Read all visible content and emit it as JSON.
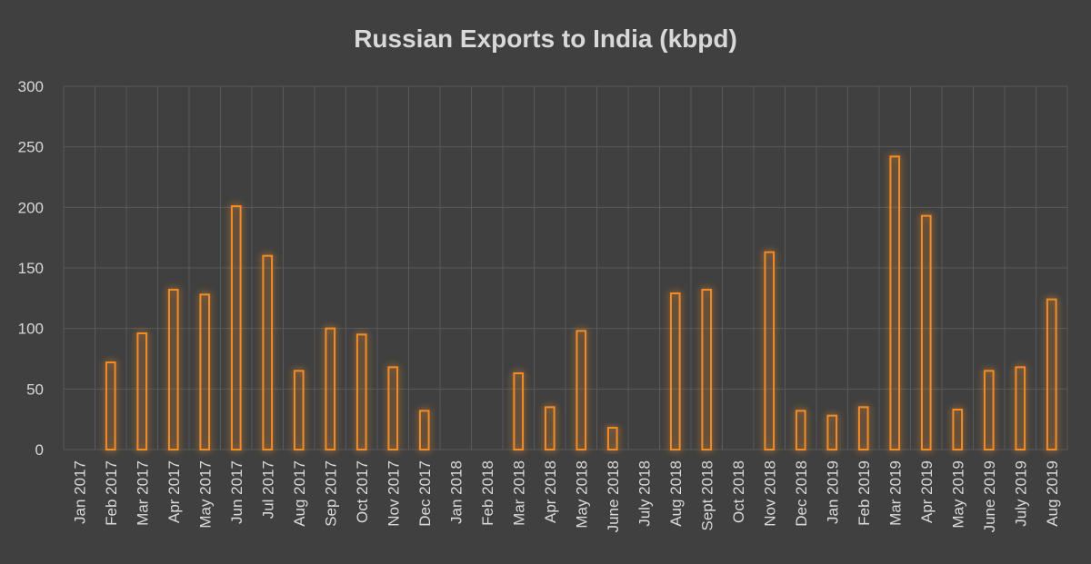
{
  "chart_data": {
    "type": "bar",
    "title": "Russian Exports to India (kbpd)",
    "xlabel": "",
    "ylabel": "",
    "ylim": [
      0,
      300
    ],
    "yticks": [
      0,
      50,
      100,
      150,
      200,
      250,
      300
    ],
    "grid": true,
    "legend": "none",
    "bar_color": "#f28c28",
    "categories": [
      "Jan 2017",
      "Feb 2017",
      "Mar 2017",
      "Apr 2017",
      "May 2017",
      "Jun 2017",
      "Jul 2017",
      "Aug 2017",
      "Sep 2017",
      "Oct 2017",
      "Nov 2017",
      "Dec 2017",
      "Jan 2018",
      "Feb 2018",
      "Mar 2018",
      "Apr 2018",
      "May 2018",
      "June 2018",
      "July 2018",
      "Aug 2018",
      "Sept 2018",
      "Oct 2018",
      "Nov 2018",
      "Dec 2018",
      "Jan 2019",
      "Feb 2019",
      "Mar 2019",
      "Apr 2019",
      "May 2019",
      "June 2019",
      "July 2019",
      "Aug 2019"
    ],
    "values": [
      0,
      72,
      96,
      132,
      128,
      201,
      160,
      65,
      100,
      95,
      68,
      32,
      0,
      0,
      63,
      35,
      98,
      18,
      0,
      129,
      132,
      0,
      163,
      32,
      28,
      35,
      242,
      193,
      33,
      65,
      68,
      124
    ]
  }
}
